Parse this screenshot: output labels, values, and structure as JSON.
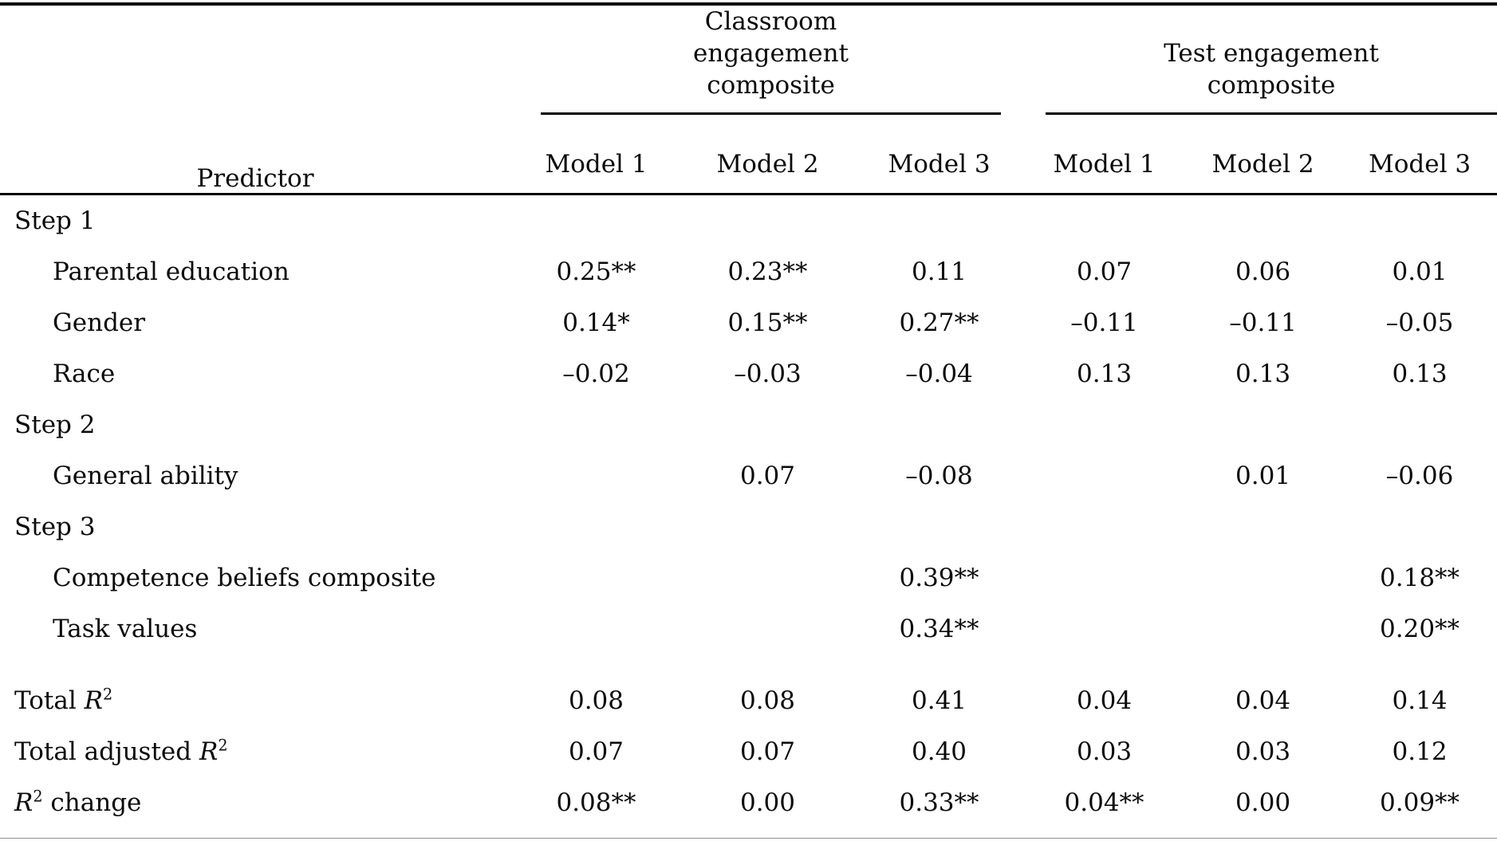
{
  "table": {
    "predictor_header": "Predictor",
    "groups": [
      {
        "label": "Classroom engagement composite"
      },
      {
        "label": "Test engagement composite"
      }
    ],
    "model_headers": [
      "Model 1",
      "Model 2",
      "Model 3",
      "Model 1",
      "Model 2",
      "Model 3"
    ],
    "rows": [
      {
        "type": "section",
        "label": [
          {
            "t": "Step 1"
          }
        ],
        "values": [
          "",
          "",
          "",
          "",
          "",
          ""
        ]
      },
      {
        "type": "indent",
        "label": [
          {
            "t": "Parental education"
          }
        ],
        "values": [
          "0.25**",
          "0.23**",
          "0.11",
          "0.07",
          "0.06",
          "0.01"
        ]
      },
      {
        "type": "indent",
        "label": [
          {
            "t": "Gender"
          }
        ],
        "values": [
          "0.14*",
          "0.15**",
          "0.27**",
          "–0.11",
          "–0.11",
          "–0.05"
        ]
      },
      {
        "type": "indent",
        "label": [
          {
            "t": "Race"
          }
        ],
        "values": [
          "–0.02",
          "–0.03",
          "–0.04",
          "0.13",
          "0.13",
          "0.13"
        ]
      },
      {
        "type": "section",
        "label": [
          {
            "t": "Step 2"
          }
        ],
        "values": [
          "",
          "",
          "",
          "",
          "",
          ""
        ]
      },
      {
        "type": "indent",
        "label": [
          {
            "t": "General ability"
          }
        ],
        "values": [
          "",
          "0.07",
          "–0.08",
          "",
          "0.01",
          "–0.06"
        ]
      },
      {
        "type": "section",
        "label": [
          {
            "t": "Step 3"
          }
        ],
        "values": [
          "",
          "",
          "",
          "",
          "",
          ""
        ]
      },
      {
        "type": "indent",
        "label": [
          {
            "t": "Competence beliefs composite"
          }
        ],
        "values": [
          "",
          "",
          "0.39**",
          "",
          "",
          "0.18**"
        ]
      },
      {
        "type": "indent",
        "label": [
          {
            "t": "Task values"
          }
        ],
        "values": [
          "",
          "",
          "0.34**",
          "",
          "",
          "0.20**"
        ]
      },
      {
        "type": "summary",
        "gap": true,
        "label": [
          {
            "t": "Total "
          },
          {
            "t": "R",
            "s": "var"
          },
          {
            "t": "2",
            "s": "sup"
          }
        ],
        "values": [
          "0.08",
          "0.08",
          "0.41",
          "0.04",
          "0.04",
          "0.14"
        ]
      },
      {
        "type": "summary",
        "label": [
          {
            "t": "Total adjusted "
          },
          {
            "t": "R",
            "s": "var"
          },
          {
            "t": "2",
            "s": "sup"
          }
        ],
        "values": [
          "0.07",
          "0.07",
          "0.40",
          "0.03",
          "0.03",
          "0.12"
        ]
      },
      {
        "type": "summary",
        "label": [
          {
            "t": "R",
            "s": "var"
          },
          {
            "t": "2",
            "s": "sup"
          },
          {
            "t": " change"
          }
        ],
        "values": [
          "0.08**",
          "0.00",
          "0.33**",
          "0.04**",
          "0.00",
          "0.09**"
        ]
      }
    ]
  }
}
